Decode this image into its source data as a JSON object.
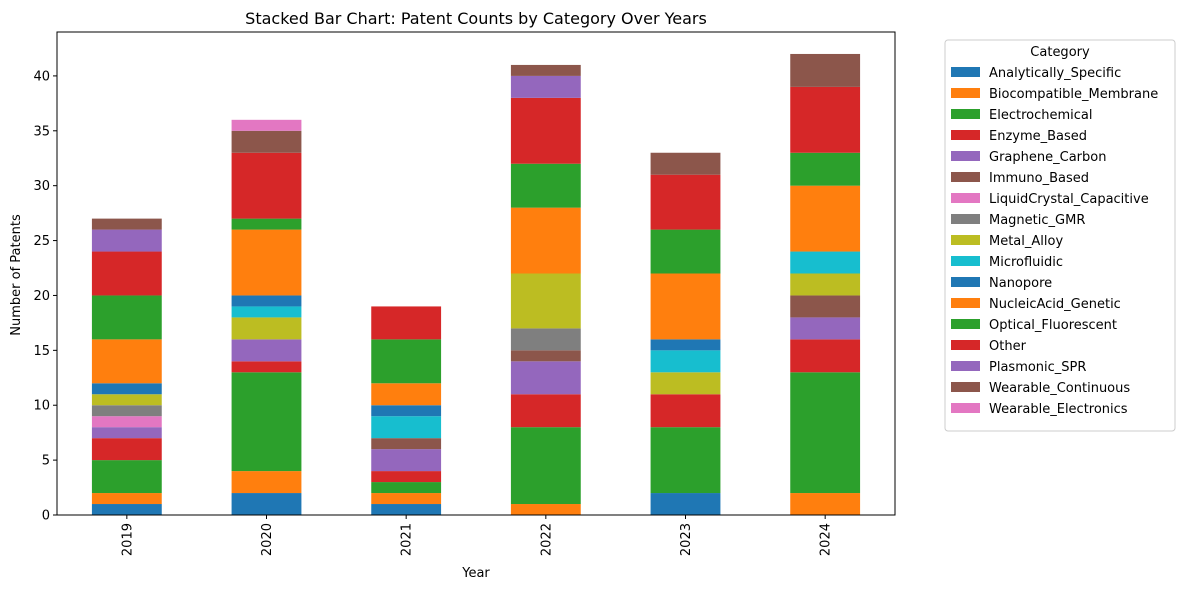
{
  "chart_data": {
    "type": "bar",
    "stacked": true,
    "title": "Stacked Bar Chart: Patent Counts by Category Over Years",
    "xlabel": "Year",
    "ylabel": "Number of Patents",
    "ylim": [
      0,
      44
    ],
    "yticks": [
      0,
      5,
      10,
      15,
      20,
      25,
      30,
      35,
      40
    ],
    "grid": false,
    "legend_title": "Category",
    "legend_position": "outside-right",
    "categories": [
      "2019",
      "2020",
      "2021",
      "2022",
      "2023",
      "2024"
    ],
    "series": [
      {
        "name": "Analytically_Specific",
        "color": "#1f77b4",
        "values": [
          1,
          2,
          1,
          0,
          2,
          0
        ]
      },
      {
        "name": "Biocompatible_Membrane",
        "color": "#ff7f0e",
        "values": [
          1,
          2,
          1,
          1,
          0,
          2
        ]
      },
      {
        "name": "Electrochemical",
        "color": "#2ca02c",
        "values": [
          3,
          9,
          1,
          7,
          6,
          11
        ]
      },
      {
        "name": "Enzyme_Based",
        "color": "#d62728",
        "values": [
          2,
          1,
          1,
          3,
          3,
          3
        ]
      },
      {
        "name": "Graphene_Carbon",
        "color": "#9467bd",
        "values": [
          1,
          2,
          2,
          3,
          0,
          2
        ]
      },
      {
        "name": "Immuno_Based",
        "color": "#8c564b",
        "values": [
          0,
          0,
          1,
          1,
          0,
          2
        ]
      },
      {
        "name": "LiquidCrystal_Capacitive",
        "color": "#e377c2",
        "values": [
          1,
          0,
          0,
          0,
          0,
          0
        ]
      },
      {
        "name": "Magnetic_GMR",
        "color": "#7f7f7f",
        "values": [
          1,
          0,
          0,
          2,
          0,
          0
        ]
      },
      {
        "name": "Metal_Alloy",
        "color": "#bcbd22",
        "values": [
          1,
          2,
          0,
          5,
          2,
          2
        ]
      },
      {
        "name": "Microfluidic",
        "color": "#17becf",
        "values": [
          0,
          1,
          2,
          0,
          2,
          2
        ]
      },
      {
        "name": "Nanopore",
        "color": "#1f77b4",
        "values": [
          1,
          1,
          1,
          0,
          1,
          0
        ]
      },
      {
        "name": "NucleicAcid_Genetic",
        "color": "#ff7f0e",
        "values": [
          4,
          6,
          2,
          6,
          6,
          6
        ]
      },
      {
        "name": "Optical_Fluorescent",
        "color": "#2ca02c",
        "values": [
          4,
          1,
          4,
          4,
          4,
          3
        ]
      },
      {
        "name": "Other",
        "color": "#d62728",
        "values": [
          4,
          6,
          3,
          6,
          5,
          6
        ]
      },
      {
        "name": "Plasmonic_SPR",
        "color": "#9467bd",
        "values": [
          2,
          0,
          0,
          2,
          0,
          0
        ]
      },
      {
        "name": "Wearable_Continuous",
        "color": "#8c564b",
        "values": [
          1,
          2,
          0,
          1,
          2,
          3
        ]
      },
      {
        "name": "Wearable_Electronics",
        "color": "#e377c2",
        "values": [
          0,
          1,
          0,
          0,
          0,
          0
        ]
      }
    ]
  }
}
